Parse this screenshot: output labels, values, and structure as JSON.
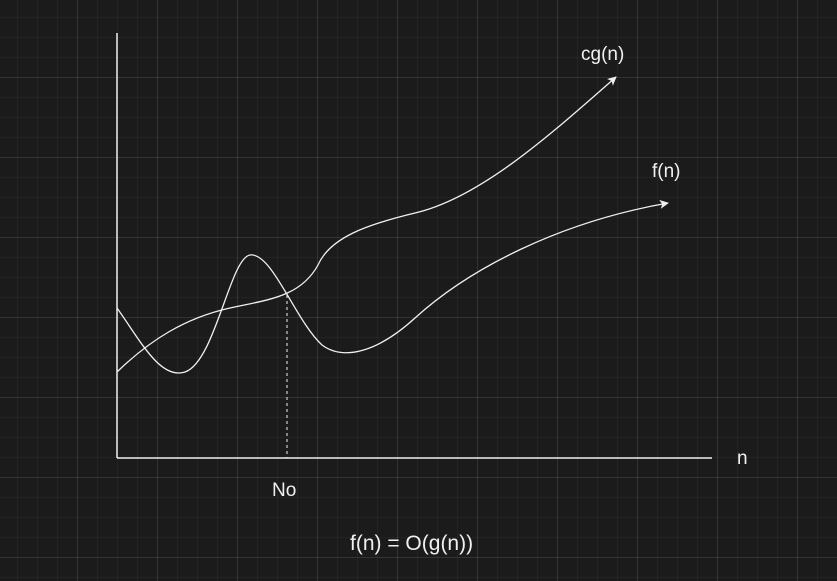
{
  "labels": {
    "cg_curve": "cg(n)",
    "f_curve": "f(n)",
    "x_axis": "n",
    "threshold": "No",
    "formula": "f(n) = O(g(n))"
  },
  "colors": {
    "background": "#1b1b1b",
    "stroke": "#f0f0f0",
    "text": "#f0f0f0"
  }
}
